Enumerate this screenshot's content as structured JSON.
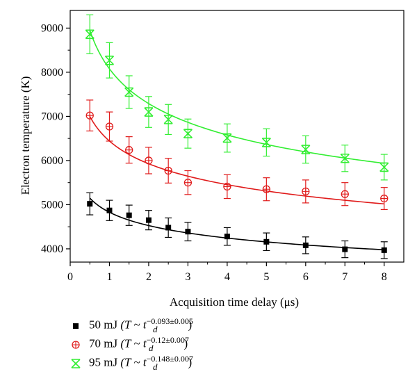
{
  "chart_data": {
    "type": "scatter",
    "xlabel": "Acquisition time delay (μs)",
    "ylabel": "Electron temperature (K)",
    "xlim": [
      0,
      8.5
    ],
    "ylim": [
      3700,
      9400
    ],
    "xticks": [
      0,
      1,
      2,
      3,
      4,
      5,
      6,
      7,
      8
    ],
    "yticks": [
      4000,
      5000,
      6000,
      7000,
      8000,
      9000
    ],
    "grid": false,
    "legend_position": "bottom-left, below plot",
    "series": [
      {
        "name": "50 mJ",
        "marker": "filled-square",
        "color": "#000000",
        "fit_exponent": -0.093,
        "fit_start": 5150,
        "x": [
          0.5,
          1,
          1.5,
          2,
          2.5,
          3,
          4,
          5,
          6,
          7,
          8
        ],
        "y": [
          5020,
          4870,
          4760,
          4650,
          4480,
          4390,
          4280,
          4160,
          4080,
          3990,
          3970
        ],
        "err": [
          250,
          230,
          230,
          220,
          220,
          210,
          200,
          200,
          190,
          190,
          190
        ]
      },
      {
        "name": "70 mJ",
        "marker": "circle-plus",
        "color": "#e01b1b",
        "fit_exponent": -0.12,
        "fit_start": 7000,
        "x": [
          0.5,
          1,
          1.5,
          2,
          2.5,
          3,
          4,
          5,
          6,
          7,
          8
        ],
        "y": [
          7020,
          6770,
          6240,
          6000,
          5770,
          5500,
          5410,
          5350,
          5300,
          5240,
          5140
        ],
        "err": [
          350,
          330,
          300,
          300,
          280,
          270,
          270,
          260,
          260,
          260,
          250
        ]
      },
      {
        "name": "95 mJ",
        "marker": "cross-box",
        "color": "#33ee33",
        "fit_exponent": -0.148,
        "fit_start": 8950,
        "x": [
          0.5,
          1,
          1.5,
          2,
          2.5,
          3,
          4,
          5,
          6,
          7,
          8
        ],
        "y": [
          8860,
          8270,
          7550,
          7100,
          6930,
          6610,
          6510,
          6410,
          6250,
          6050,
          5850
        ],
        "err": [
          440,
          400,
          370,
          350,
          340,
          330,
          320,
          310,
          310,
          300,
          290
        ]
      }
    ],
    "legend": [
      {
        "label": "50 mJ",
        "fit_prefix": "(T ~ t",
        "fit_sub": "d",
        "fit_sup": "−0.093±0.005",
        "fit_suffix": ")"
      },
      {
        "label": "70 mJ",
        "fit_prefix": "(T ~ t",
        "fit_sub": "d",
        "fit_sup": "−0.12±0.007",
        "fit_suffix": ")"
      },
      {
        "label": "95 mJ",
        "fit_prefix": "(T ~ t",
        "fit_sub": "d",
        "fit_sup": "−0.148±0.007",
        "fit_suffix": ")"
      }
    ]
  }
}
